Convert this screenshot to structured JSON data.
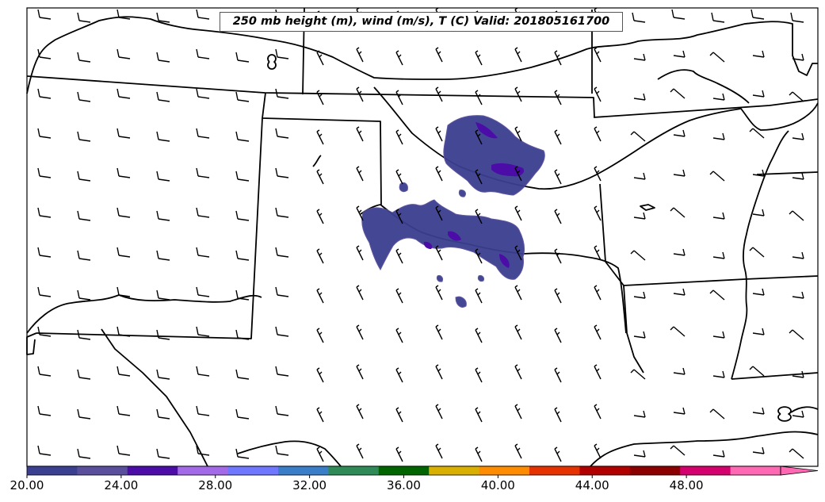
{
  "title": "250 mb height (m), wind (m/s), T (C) Valid: 201805161700",
  "colorbar": {
    "min": 20,
    "max": 52,
    "step": 2,
    "colors": [
      "#3b3f8f",
      "#5a4f9c",
      "#4b0ca8",
      "#a36ae8",
      "#6f77ff",
      "#3a7dc9",
      "#2e8b57",
      "#006400",
      "#d9b000",
      "#ff8c00",
      "#e63200",
      "#b00000",
      "#8b0000",
      "#d4006e",
      "#ff69b4"
    ],
    "tick_labels": [
      "20.00",
      "24.00",
      "28.00",
      "32.00",
      "36.00",
      "40.00",
      "44.00",
      "48.00"
    ],
    "extend": "max"
  },
  "temperature_contour_color": "#3b3f8f",
  "temperature_core_color": "#4b0ca8"
}
